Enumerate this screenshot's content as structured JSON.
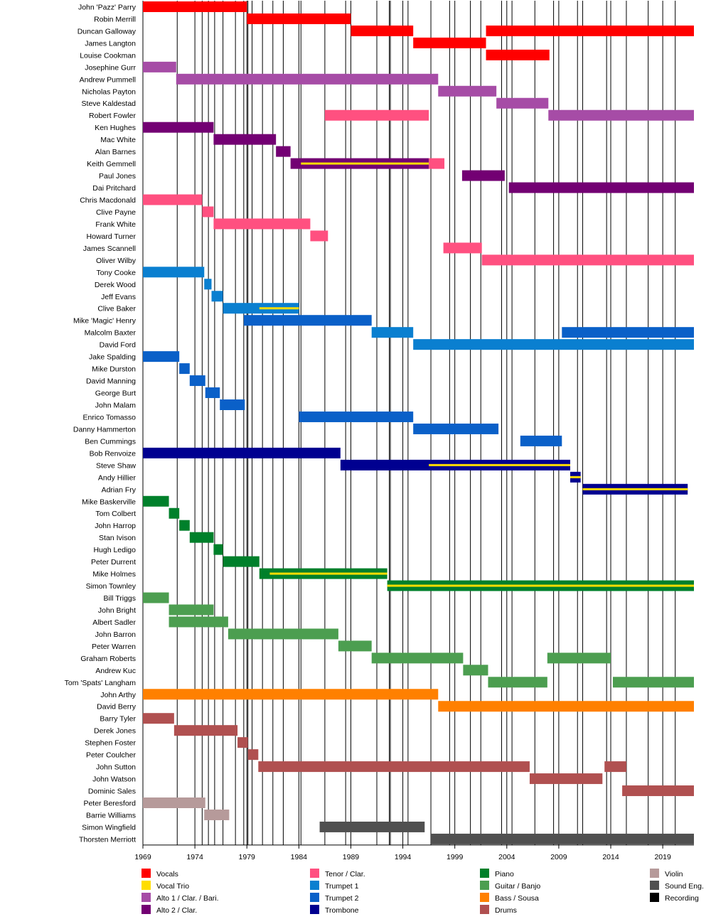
{
  "chart_data": {
    "type": "timeline",
    "xlim": [
      1969,
      2022
    ],
    "ticks": [
      "1969",
      "1974",
      "1979",
      "1984",
      "1989",
      "1994",
      "1999",
      "2004",
      "2009",
      "2014",
      "2019"
    ],
    "tick_values": [
      1969,
      1974,
      1979,
      1984,
      1989,
      1994,
      1999,
      2004,
      2009,
      2014,
      2019
    ],
    "recording_years": [
      1972.3,
      1974.7,
      1975.3,
      1975.9,
      1976.7,
      1977.9,
      1978.7,
      1979.1,
      1979.5,
      1980.5,
      1981.5,
      1982.5,
      1984.2,
      1986.5,
      1988.5,
      1991.5,
      1992.7,
      1992.8,
      1994.5,
      1996.7,
      1998.5,
      2000.5,
      2001.5,
      2003.5,
      2004.5,
      2006.7,
      2008.5,
      2010.8,
      2011.3,
      2013.6,
      2015.5,
      2017.6,
      2020.2
    ],
    "legend": [
      {
        "key": "vocals",
        "label": "Vocals",
        "color": "#ff0000"
      },
      {
        "key": "trio",
        "label": "Vocal Trio",
        "color": "#ffdd00"
      },
      {
        "key": "alto1",
        "label": "Alto 1 / Clar. / Bari.",
        "color": "#a64ca6"
      },
      {
        "key": "alto2",
        "label": "Alto 2 / Clar.",
        "color": "#730073"
      },
      {
        "key": "tenor",
        "label": "Tenor / Clar.",
        "color": "#ff5080"
      },
      {
        "key": "tp1",
        "label": "Trumpet 1",
        "color": "#0a7fd0"
      },
      {
        "key": "tp2",
        "label": "Trumpet 2",
        "color": "#0a60c8"
      },
      {
        "key": "tbn",
        "label": "Trombone",
        "color": "#000090"
      },
      {
        "key": "piano",
        "label": "Piano",
        "color": "#00802b"
      },
      {
        "key": "guitar",
        "label": "Guitar / Banjo",
        "color": "#4c9e50"
      },
      {
        "key": "bass",
        "label": "Bass / Sousa",
        "color": "#ff8000"
      },
      {
        "key": "drums",
        "label": "Drums",
        "color": "#b05050"
      },
      {
        "key": "violin",
        "label": "Violin",
        "color": "#b69a9a"
      },
      {
        "key": "sound",
        "label": "Sound Eng.",
        "color": "#505050"
      },
      {
        "key": "rec",
        "label": "Recording",
        "color": "#000000"
      }
    ],
    "members": [
      {
        "name": "John 'Pazz' Parry",
        "spans": [
          [
            1969,
            1979,
            "vocals"
          ]
        ]
      },
      {
        "name": "Robin Merrill",
        "spans": [
          [
            1979,
            1989,
            "vocals"
          ]
        ]
      },
      {
        "name": "Duncan Galloway",
        "spans": [
          [
            1989,
            1995,
            "vocals"
          ],
          [
            2002,
            2022,
            "vocals"
          ]
        ]
      },
      {
        "name": "James Langton",
        "spans": [
          [
            1995,
            2002,
            "vocals"
          ]
        ]
      },
      {
        "name": "Louise Cookman",
        "spans": [
          [
            2002,
            2008.1,
            "vocals"
          ]
        ]
      },
      {
        "name": "Josephine Gurr",
        "spans": [
          [
            1969,
            1972.2,
            "alto1"
          ]
        ]
      },
      {
        "name": "Andrew Pummell",
        "spans": [
          [
            1972.2,
            1997.4,
            "alto1"
          ]
        ]
      },
      {
        "name": "Nicholas Payton",
        "spans": [
          [
            1997.4,
            2003,
            "alto1"
          ]
        ]
      },
      {
        "name": "Steve Kaldestad",
        "spans": [
          [
            2003,
            2008,
            "alto1"
          ]
        ]
      },
      {
        "name": "Robert Fowler",
        "spans": [
          [
            1986.5,
            1996.5,
            "tenor"
          ],
          [
            2008,
            2022,
            "alto1"
          ]
        ]
      },
      {
        "name": "Ken Hughes",
        "spans": [
          [
            1969,
            1975.8,
            "alto2"
          ]
        ]
      },
      {
        "name": "Mac White",
        "spans": [
          [
            1975.8,
            1981.8,
            "alto2"
          ]
        ]
      },
      {
        "name": "Alan Barnes",
        "spans": [
          [
            1981.8,
            1983.2,
            "alto2"
          ]
        ]
      },
      {
        "name": "Keith Gemmell",
        "spans": [
          [
            1983.2,
            1996.5,
            "alto2"
          ],
          [
            1996.5,
            1998,
            "tenor"
          ]
        ],
        "trio": [
          [
            1984.2,
            1996.5
          ]
        ]
      },
      {
        "name": "Paul Jones",
        "spans": [
          [
            1999.7,
            2003.8,
            "alto2"
          ]
        ]
      },
      {
        "name": "Dai Pritchard",
        "spans": [
          [
            2004.2,
            2022,
            "alto2"
          ]
        ]
      },
      {
        "name": "Chris Macdonald",
        "spans": [
          [
            1969,
            1974.7,
            "tenor"
          ]
        ]
      },
      {
        "name": "Clive Payne",
        "spans": [
          [
            1974.7,
            1975.8,
            "tenor"
          ]
        ]
      },
      {
        "name": "Frank White",
        "spans": [
          [
            1975.8,
            1985.1,
            "tenor"
          ]
        ]
      },
      {
        "name": "Howard Turner",
        "spans": [
          [
            1985.1,
            1986.8,
            "tenor"
          ]
        ]
      },
      {
        "name": "James Scannell",
        "spans": [
          [
            1997.9,
            2001.6,
            "tenor"
          ]
        ]
      },
      {
        "name": "Oliver Wilby",
        "spans": [
          [
            2001.6,
            2022,
            "tenor"
          ]
        ]
      },
      {
        "name": "Tony Cooke",
        "spans": [
          [
            1969,
            1974.9,
            "tp1"
          ]
        ]
      },
      {
        "name": "Derek Wood",
        "spans": [
          [
            1974.9,
            1975.6,
            "tp1"
          ]
        ]
      },
      {
        "name": "Jeff Evans",
        "spans": [
          [
            1975.6,
            1976.7,
            "tp1"
          ]
        ]
      },
      {
        "name": "Clive Baker",
        "spans": [
          [
            1976.7,
            1984,
            "tp1"
          ]
        ],
        "trio": [
          [
            1980.2,
            1984
          ]
        ]
      },
      {
        "name": "Mike 'Magic' Henry",
        "spans": [
          [
            1978.7,
            1991,
            "tp2"
          ]
        ]
      },
      {
        "name": "Malcolm Baxter",
        "spans": [
          [
            1991,
            1995,
            "tp1"
          ],
          [
            2009.3,
            2022,
            "tp2"
          ]
        ]
      },
      {
        "name": "David Ford",
        "spans": [
          [
            1995,
            2022,
            "tp1"
          ]
        ]
      },
      {
        "name": "Jake Spalding",
        "spans": [
          [
            1969,
            1972.5,
            "tp2"
          ]
        ]
      },
      {
        "name": "Mike Durston",
        "spans": [
          [
            1972.5,
            1973.5,
            "tp2"
          ]
        ]
      },
      {
        "name": "David Manning",
        "spans": [
          [
            1973.5,
            1975,
            "tp2"
          ]
        ]
      },
      {
        "name": "George Burt",
        "spans": [
          [
            1975,
            1976.4,
            "tp2"
          ]
        ]
      },
      {
        "name": "John Malam",
        "spans": [
          [
            1976.4,
            1978.8,
            "tp2"
          ]
        ]
      },
      {
        "name": "Enrico Tomasso",
        "spans": [
          [
            1984,
            1995,
            "tp2"
          ]
        ]
      },
      {
        "name": "Danny Hammerton",
        "spans": [
          [
            1995,
            2003.2,
            "tp2"
          ]
        ]
      },
      {
        "name": "Ben Cummings",
        "spans": [
          [
            2005.3,
            2009.3,
            "tp2"
          ]
        ]
      },
      {
        "name": "Bob Renvoize",
        "spans": [
          [
            1969,
            1988,
            "tbn"
          ]
        ]
      },
      {
        "name": "Steve Shaw",
        "spans": [
          [
            1988,
            2010.1,
            "tbn"
          ]
        ],
        "trio": [
          [
            1996.5,
            2010.1
          ]
        ]
      },
      {
        "name": "Andy Hillier",
        "spans": [
          [
            2010.1,
            2011.1,
            "tbn"
          ]
        ],
        "trio": [
          [
            2010.1,
            2011.1
          ]
        ]
      },
      {
        "name": "Adrian Fry",
        "spans": [
          [
            2011.3,
            2021.4,
            "tbn"
          ]
        ],
        "trio": [
          [
            2011.3,
            2021.4
          ]
        ]
      },
      {
        "name": "Mike Baskerville",
        "spans": [
          [
            1969,
            1971.5,
            "piano"
          ]
        ]
      },
      {
        "name": "Tom Colbert",
        "spans": [
          [
            1971.5,
            1972.5,
            "piano"
          ]
        ]
      },
      {
        "name": "John Harrop",
        "spans": [
          [
            1972.5,
            1973.5,
            "piano"
          ]
        ]
      },
      {
        "name": "Stan Ivison",
        "spans": [
          [
            1973.5,
            1975.8,
            "piano"
          ]
        ]
      },
      {
        "name": "Hugh Ledigo",
        "spans": [
          [
            1975.8,
            1976.7,
            "piano"
          ]
        ]
      },
      {
        "name": "Peter Durrent",
        "spans": [
          [
            1976.7,
            1980.2,
            "piano"
          ]
        ]
      },
      {
        "name": "Mike Holmes",
        "spans": [
          [
            1980.2,
            1992.5,
            "piano"
          ]
        ],
        "trio": [
          [
            1981.2,
            1992.5
          ]
        ]
      },
      {
        "name": "Simon Townley",
        "spans": [
          [
            1992.5,
            2022,
            "piano"
          ]
        ],
        "trio": [
          [
            1992.5,
            2022
          ]
        ]
      },
      {
        "name": "Bill Triggs",
        "spans": [
          [
            1969,
            1971.5,
            "guitar"
          ]
        ]
      },
      {
        "name": "John Bright",
        "spans": [
          [
            1971.5,
            1975.8,
            "guitar"
          ]
        ]
      },
      {
        "name": "Albert Sadler",
        "spans": [
          [
            1971.5,
            1977.2,
            "guitar"
          ]
        ]
      },
      {
        "name": "John Barron",
        "spans": [
          [
            1977.2,
            1987.8,
            "guitar"
          ]
        ]
      },
      {
        "name": "Peter Warren",
        "spans": [
          [
            1987.8,
            1991,
            "guitar"
          ]
        ]
      },
      {
        "name": "Graham Roberts",
        "spans": [
          [
            1991,
            1999.8,
            "guitar"
          ],
          [
            2007.9,
            2014,
            "guitar"
          ]
        ]
      },
      {
        "name": "Andrew Kuc",
        "spans": [
          [
            1999.8,
            2002.2,
            "guitar"
          ]
        ]
      },
      {
        "name": "Tom 'Spats' Langham",
        "spans": [
          [
            2002.2,
            2007.9,
            "guitar"
          ],
          [
            2014.2,
            2022,
            "guitar"
          ]
        ]
      },
      {
        "name": "John Arthy",
        "spans": [
          [
            1969,
            1997.4,
            "bass"
          ]
        ]
      },
      {
        "name": "David Berry",
        "spans": [
          [
            1997.4,
            2022,
            "bass"
          ]
        ]
      },
      {
        "name": "Barry Tyler",
        "spans": [
          [
            1969,
            1972,
            "drums"
          ]
        ]
      },
      {
        "name": "Derek Jones",
        "spans": [
          [
            1972,
            1978.1,
            "drums"
          ]
        ]
      },
      {
        "name": "Stephen Foster",
        "spans": [
          [
            1978.1,
            1979.1,
            "drums"
          ]
        ]
      },
      {
        "name": "Peter Coulcher",
        "spans": [
          [
            1979.1,
            1980.1,
            "drums"
          ]
        ]
      },
      {
        "name": "John Sutton",
        "spans": [
          [
            1980.1,
            2006.2,
            "drums"
          ],
          [
            2013.4,
            2015.5,
            "drums"
          ]
        ]
      },
      {
        "name": "John Watson",
        "spans": [
          [
            2006.2,
            2013.2,
            "drums"
          ]
        ]
      },
      {
        "name": "Dominic Sales",
        "spans": [
          [
            2015.1,
            2022,
            "drums"
          ]
        ]
      },
      {
        "name": "Peter Beresford",
        "spans": [
          [
            1969,
            1975,
            "violin"
          ]
        ]
      },
      {
        "name": "Barrie Williams",
        "spans": [
          [
            1974.9,
            1977.3,
            "violin"
          ]
        ]
      },
      {
        "name": "Simon Wingfield",
        "spans": [
          [
            1986,
            1996.1,
            "sound"
          ]
        ]
      },
      {
        "name": "Thorsten Merriott",
        "spans": [
          [
            1996.7,
            2022,
            "sound"
          ]
        ]
      }
    ]
  }
}
